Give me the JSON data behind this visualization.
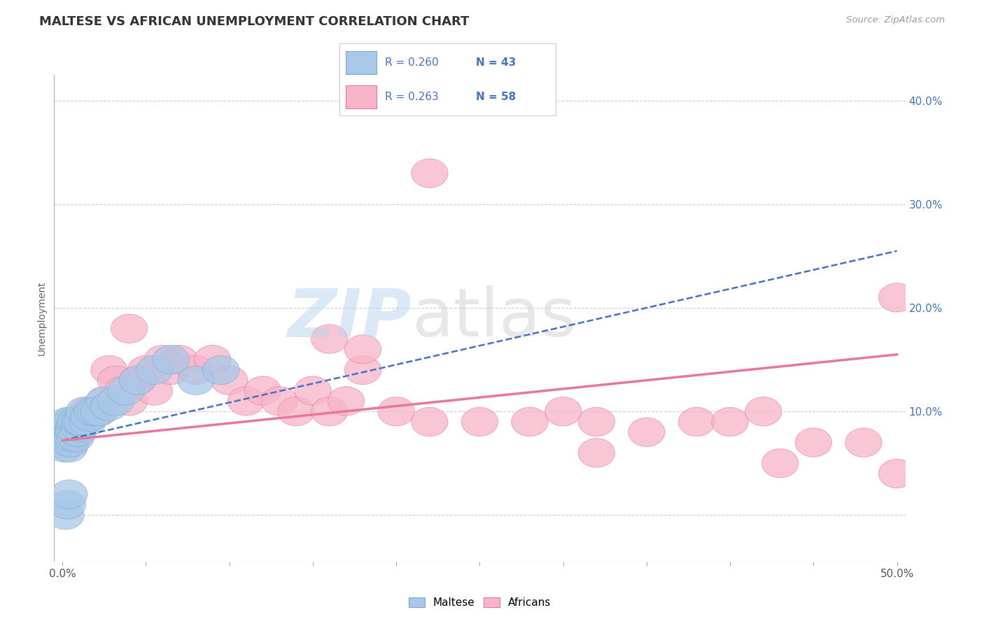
{
  "title": "MALTESE VS AFRICAN UNEMPLOYMENT CORRELATION CHART",
  "source_text": "Source: ZipAtlas.com",
  "ylabel": "Unemployment",
  "xlim": [
    -0.005,
    0.505
  ],
  "ylim": [
    -0.045,
    0.425
  ],
  "maltese_color": "#a8c8e8",
  "maltese_edge_color": "#7aaad0",
  "african_color": "#f8b4c8",
  "african_edge_color": "#e87898",
  "maltese_line_color": "#4472c4",
  "african_line_color": "#e87898",
  "maltese_R": "0.260",
  "maltese_N": "43",
  "african_R": "0.263",
  "african_N": "58",
  "background_color": "#ffffff",
  "grid_color": "#cccccc",
  "title_color": "#333333",
  "source_color": "#999999",
  "right_tick_color": "#4472c4",
  "legend_text_color": "#4472c4"
}
